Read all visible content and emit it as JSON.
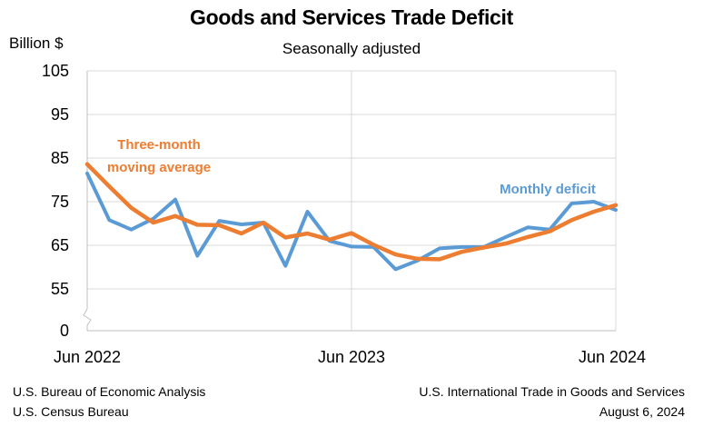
{
  "chart_data": {
    "type": "line",
    "title": "Goods and Services Trade Deficit",
    "subtitle": "Seasonally adjusted",
    "ylabel": "Billion $",
    "xlabel": "",
    "ylim": [
      0,
      105
    ],
    "yticks": [
      0,
      55,
      65,
      75,
      85,
      95,
      105
    ],
    "y_axis_break": "between 0 and 55",
    "grid": true,
    "x": [
      "Jun 2022",
      "Jul 2022",
      "Aug 2022",
      "Sep 2022",
      "Oct 2022",
      "Nov 2022",
      "Dec 2022",
      "Jan 2023",
      "Feb 2023",
      "Mar 2023",
      "Apr 2023",
      "May 2023",
      "Jun 2023",
      "Jul 2023",
      "Aug 2023",
      "Sep 2023",
      "Oct 2023",
      "Nov 2023",
      "Dec 2023",
      "Jan 2024",
      "Feb 2024",
      "Mar 2024",
      "Apr 2024",
      "May 2024",
      "Jun 2024"
    ],
    "xtick_labels": [
      "Jun 2022",
      "Jun 2023",
      "Jun 2024"
    ],
    "series": [
      {
        "name": "Monthly deficit",
        "color": "#5b9bd5",
        "values": [
          81.5,
          70.8,
          68.6,
          71.1,
          75.5,
          62.6,
          70.6,
          69.8,
          70.2,
          60.3,
          72.7,
          66.0,
          64.7,
          64.6,
          59.5,
          61.5,
          64.3,
          64.6,
          64.6,
          66.9,
          69.1,
          68.6,
          74.6,
          75.0,
          73.1
        ]
      },
      {
        "name": "Three-month moving average",
        "color": "#ed7d31",
        "values": [
          83.6,
          78.5,
          73.6,
          70.2,
          71.7,
          69.7,
          69.6,
          67.7,
          70.2,
          66.8,
          67.7,
          66.3,
          67.8,
          65.1,
          62.9,
          61.9,
          61.8,
          63.5,
          64.5,
          65.4,
          66.9,
          68.2,
          70.8,
          72.7,
          74.2
        ]
      }
    ]
  },
  "footer": {
    "left_line1": "U.S. Bureau of Economic Analysis",
    "left_line2": "U.S. Census Bureau",
    "right_line1": "U.S. International Trade in Goods and Services",
    "right_line2": "August 6, 2024"
  }
}
